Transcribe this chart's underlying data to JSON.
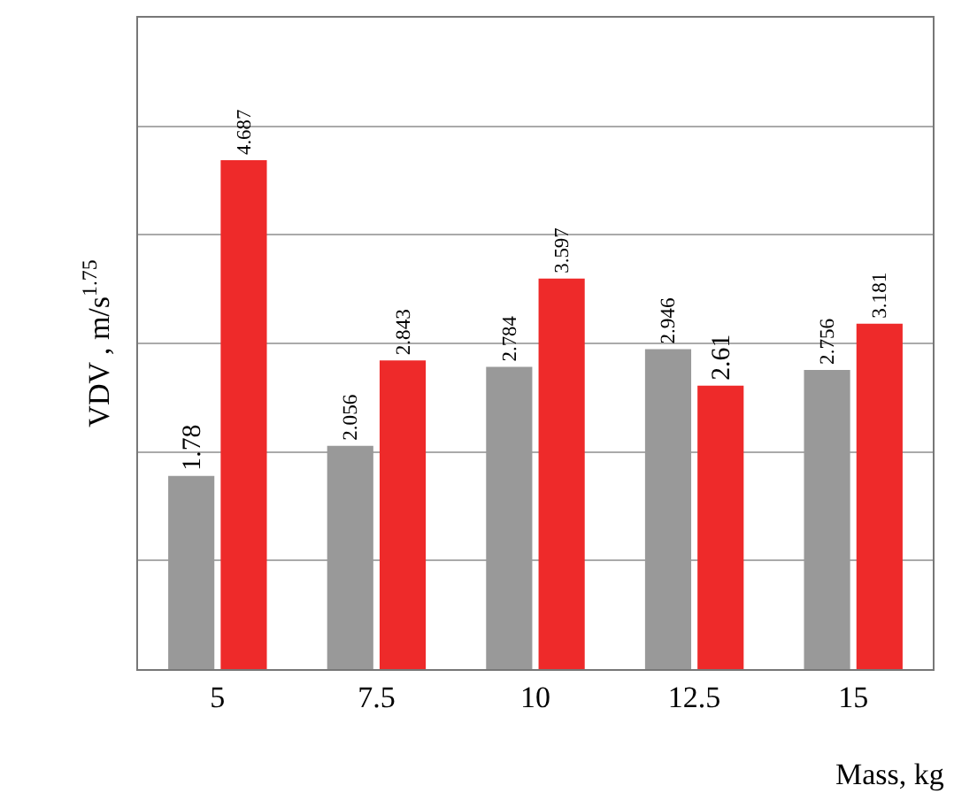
{
  "chart_data": {
    "type": "bar",
    "categories": [
      "5",
      "7.5",
      "10",
      "12.5",
      "15"
    ],
    "series": [
      {
        "color": "#999999",
        "values": [
          1.78,
          2.056,
          2.784,
          2.946,
          2.756
        ]
      },
      {
        "color": "#ee2a2a",
        "values": [
          4.687,
          2.843,
          3.597,
          2.61,
          3.181
        ]
      }
    ],
    "ylim": [
      0,
      6
    ],
    "yticks": [
      {
        "value": 0,
        "label": null
      },
      {
        "value": 1,
        "label": null
      },
      {
        "value": 2,
        "label": null
      },
      {
        "value": 3,
        "label": null
      },
      {
        "value": 4,
        "label": null
      },
      {
        "value": 5,
        "label": null
      },
      {
        "value": 6,
        "label": null
      }
    ],
    "grid": "y",
    "tick_labels": "x",
    "data_labels": true,
    "xlabel": "Mass, kg",
    "ylabel": "VDV , m/s$^{1.75}$"
  }
}
